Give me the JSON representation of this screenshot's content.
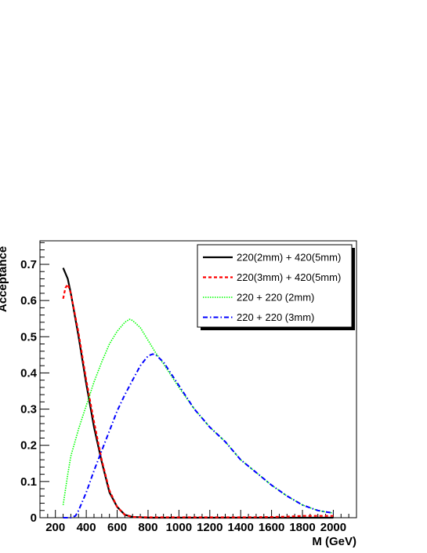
{
  "chart_data": {
    "type": "line",
    "title": "",
    "xlabel": "M (GeV)",
    "ylabel": "Acceptance",
    "xlim": [
      100,
      2150
    ],
    "ylim": [
      0,
      0.765
    ],
    "x_ticks": [
      200,
      400,
      600,
      800,
      1000,
      1200,
      1400,
      1600,
      1800,
      2000
    ],
    "y_ticks": [
      0,
      0.1,
      0.2,
      0.3,
      0.4,
      0.5,
      0.6,
      0.7
    ],
    "x_tick_labels": [
      "200",
      "400",
      "600",
      "800",
      "1000",
      "1200",
      "1400",
      "1600",
      "1800",
      "2000"
    ],
    "y_tick_labels": [
      "0",
      "0.1",
      "0.2",
      "0.3",
      "0.4",
      "0.5",
      "0.6",
      "0.7"
    ],
    "grid": false,
    "legend_position": "top-right",
    "series": [
      {
        "name": "220(2mm) + 420(5mm)",
        "color": "#000000",
        "style": "solid",
        "x": [
          250,
          280,
          300,
          350,
          400,
          450,
          500,
          550,
          600,
          650,
          700,
          750,
          800,
          900,
          1000,
          1200,
          1400,
          1600,
          1800,
          2000
        ],
        "y": [
          0.69,
          0.66,
          0.62,
          0.5,
          0.37,
          0.25,
          0.155,
          0.07,
          0.03,
          0.008,
          0.002,
          0.001,
          0,
          0,
          0,
          0,
          0,
          0,
          0,
          0
        ]
      },
      {
        "name": "220(3mm) + 420(5mm)",
        "color": "#ff0000",
        "style": "dashed",
        "x": [
          250,
          265,
          280,
          300,
          350,
          400,
          450,
          500,
          550,
          600,
          650,
          700,
          800,
          1000,
          1200,
          1400,
          1600,
          1700,
          1800,
          1900,
          2000
        ],
        "y": [
          0.605,
          0.635,
          0.645,
          0.62,
          0.51,
          0.38,
          0.265,
          0.16,
          0.075,
          0.03,
          0.008,
          0.002,
          0.001,
          0.001,
          0.001,
          0.001,
          0.002,
          0.003,
          0.005,
          0.005,
          0.005
        ]
      },
      {
        "name": "220 + 220 (2mm)",
        "color": "#00ff00",
        "style": "dotted",
        "x": [
          250,
          280,
          300,
          350,
          400,
          450,
          500,
          550,
          600,
          650,
          680,
          700,
          750,
          800,
          850,
          900,
          1000,
          1100,
          1200,
          1300,
          1400,
          1500,
          1600,
          1700,
          1800,
          1900,
          1950,
          2000
        ],
        "y": [
          0.035,
          0.12,
          0.17,
          0.245,
          0.31,
          0.375,
          0.43,
          0.48,
          0.515,
          0.54,
          0.548,
          0.545,
          0.525,
          0.49,
          0.455,
          0.425,
          0.36,
          0.3,
          0.25,
          0.21,
          0.16,
          0.125,
          0.09,
          0.06,
          0.035,
          0.02,
          0.016,
          0.013
        ]
      },
      {
        "name": "220 + 220 (3mm)",
        "color": "#0000ff",
        "style": "dashdot",
        "x": [
          250,
          300,
          330,
          350,
          400,
          450,
          500,
          550,
          600,
          650,
          700,
          750,
          800,
          830,
          850,
          900,
          1000,
          1100,
          1200,
          1300,
          1400,
          1500,
          1600,
          1700,
          1800,
          1900,
          1950,
          2000
        ],
        "y": [
          0,
          0,
          0.005,
          0.02,
          0.07,
          0.13,
          0.185,
          0.24,
          0.295,
          0.34,
          0.38,
          0.42,
          0.447,
          0.452,
          0.45,
          0.43,
          0.365,
          0.3,
          0.25,
          0.21,
          0.16,
          0.125,
          0.09,
          0.06,
          0.035,
          0.02,
          0.016,
          0.013
        ]
      }
    ]
  }
}
